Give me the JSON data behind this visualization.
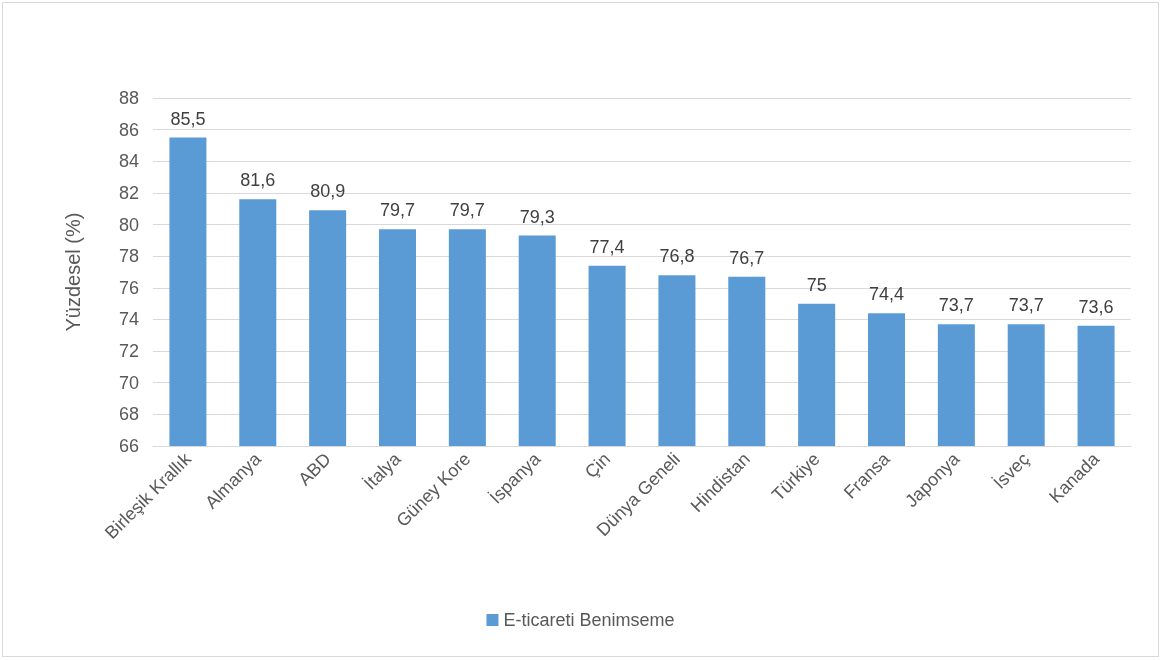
{
  "chart_data": {
    "type": "bar",
    "ylabel": "Yüzdesel (%)",
    "categories": [
      "Birleşik Krallık",
      "Almanya",
      "ABD",
      "İtalya",
      "Güney Kore",
      "İspanya",
      "Çin",
      "Dünya Geneli",
      "Hindistan",
      "Türkiye",
      "Fransa",
      "Japonya",
      "İsveç",
      "Kanada"
    ],
    "series": [
      {
        "name": "E-ticareti Benimseme",
        "color": "#5b9bd5",
        "values": [
          85.5,
          81.6,
          80.9,
          79.7,
          79.7,
          79.3,
          77.4,
          76.8,
          76.7,
          75,
          74.4,
          73.7,
          73.7,
          73.6
        ],
        "value_labels": [
          "85,5",
          "81,6",
          "80,9",
          "79,7",
          "79,7",
          "79,3",
          "77,4",
          "76,8",
          "76,7",
          "75",
          "74,4",
          "73,7",
          "73,7",
          "73,6"
        ]
      }
    ],
    "ylim": [
      66,
      88
    ],
    "yticks": [
      66,
      68,
      70,
      72,
      74,
      76,
      78,
      80,
      82,
      84,
      86,
      88
    ],
    "grid": "y",
    "legend": "bottom"
  }
}
